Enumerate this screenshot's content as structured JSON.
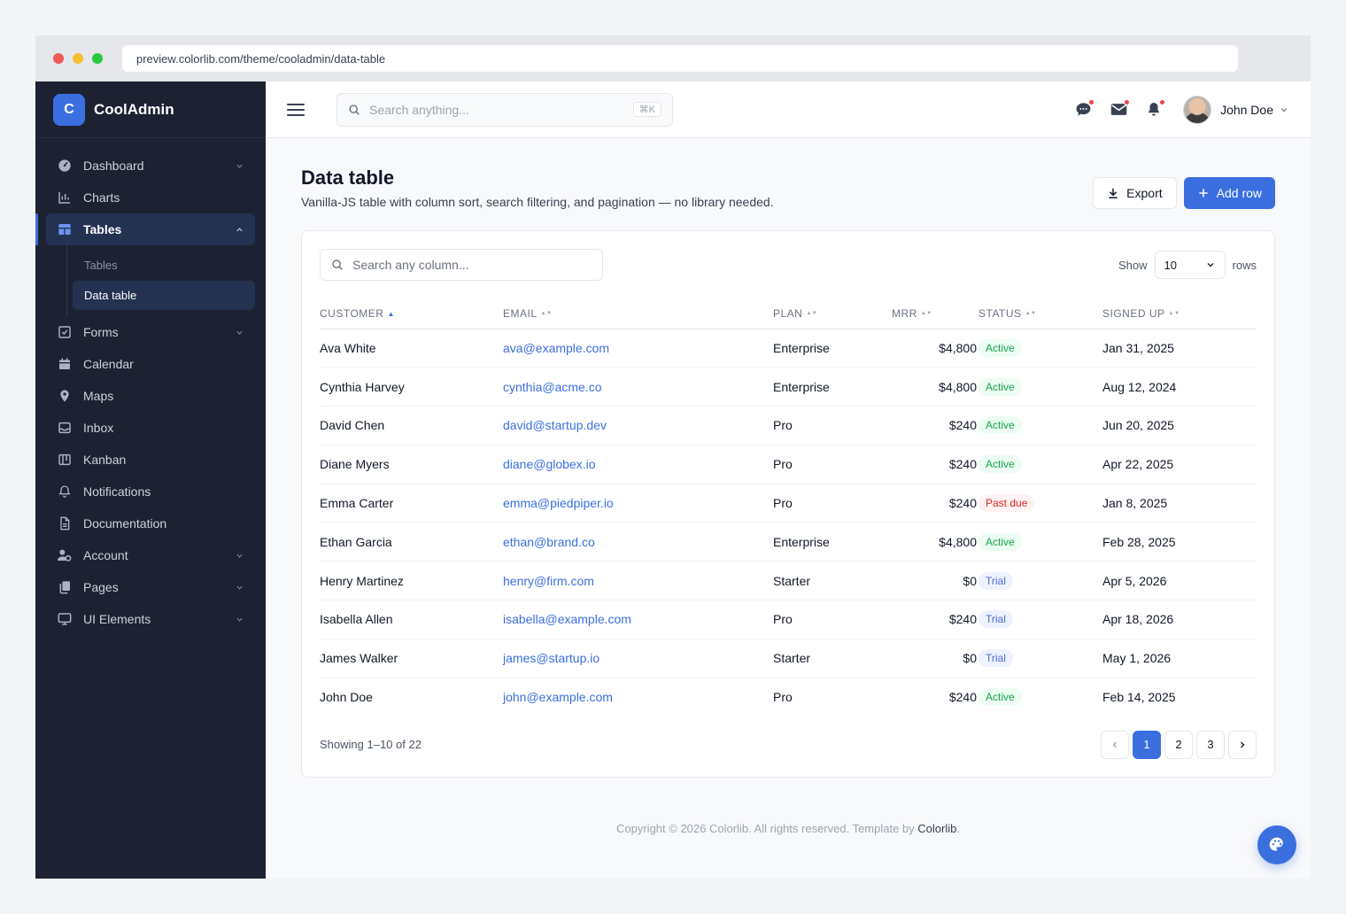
{
  "browser": {
    "url": "preview.colorlib.com/theme/cooladmin/data-table",
    "dots": [
      "#ef5a52",
      "#f5be2f",
      "#28c840"
    ]
  },
  "brand": {
    "logo_letter": "C",
    "name": "CoolAdmin"
  },
  "sidebar": {
    "items": [
      {
        "label": "Dashboard",
        "icon": "dashboard-icon",
        "chevron": "down"
      },
      {
        "label": "Charts",
        "icon": "chart-icon",
        "chevron": ""
      },
      {
        "label": "Tables",
        "icon": "table-icon",
        "chevron": "up",
        "active": true
      },
      {
        "label": "Forms",
        "icon": "checkbox-icon",
        "chevron": "down"
      },
      {
        "label": "Calendar",
        "icon": "calendar-icon",
        "chevron": ""
      },
      {
        "label": "Maps",
        "icon": "map-pin-icon",
        "chevron": ""
      },
      {
        "label": "Inbox",
        "icon": "inbox-icon",
        "chevron": ""
      },
      {
        "label": "Kanban",
        "icon": "kanban-icon",
        "chevron": ""
      },
      {
        "label": "Notifications",
        "icon": "bell-icon",
        "chevron": ""
      },
      {
        "label": "Documentation",
        "icon": "document-icon",
        "chevron": ""
      },
      {
        "label": "Account",
        "icon": "user-cog-icon",
        "chevron": "down"
      },
      {
        "label": "Pages",
        "icon": "pages-icon",
        "chevron": "down"
      },
      {
        "label": "UI Elements",
        "icon": "monitor-icon",
        "chevron": "down"
      }
    ],
    "sub_items": [
      {
        "label": "Tables",
        "current": false
      },
      {
        "label": "Data table",
        "current": true
      }
    ]
  },
  "topbar": {
    "search_placeholder": "Search anything...",
    "search_shortcut": "⌘K",
    "user_name": "John Doe"
  },
  "page": {
    "title": "Data table",
    "subtitle": "Vanilla-JS table with column sort, search filtering, and pagination — no library needed.",
    "export_label": "Export",
    "add_row_label": "Add row"
  },
  "table": {
    "search_placeholder": "Search any column...",
    "show_label": "Show",
    "rows_label": "rows",
    "page_size": "10",
    "columns": [
      {
        "label": "CUSTOMER",
        "sort": "asc"
      },
      {
        "label": "EMAIL",
        "sort": "none"
      },
      {
        "label": "PLAN",
        "sort": "none"
      },
      {
        "label": "MRR",
        "sort": "none"
      },
      {
        "label": "STATUS",
        "sort": "none"
      },
      {
        "label": "SIGNED UP",
        "sort": "none"
      }
    ],
    "rows": [
      {
        "customer": "Ava White",
        "email": "ava@example.com",
        "plan": "Enterprise",
        "mrr": "$4,800",
        "status": "Active",
        "signed_up": "Jan 31, 2025"
      },
      {
        "customer": "Cynthia Harvey",
        "email": "cynthia@acme.co",
        "plan": "Enterprise",
        "mrr": "$4,800",
        "status": "Active",
        "signed_up": "Aug 12, 2024"
      },
      {
        "customer": "David Chen",
        "email": "david@startup.dev",
        "plan": "Pro",
        "mrr": "$240",
        "status": "Active",
        "signed_up": "Jun 20, 2025"
      },
      {
        "customer": "Diane Myers",
        "email": "diane@globex.io",
        "plan": "Pro",
        "mrr": "$240",
        "status": "Active",
        "signed_up": "Apr 22, 2025"
      },
      {
        "customer": "Emma Carter",
        "email": "emma@piedpiper.io",
        "plan": "Pro",
        "mrr": "$240",
        "status": "Past due",
        "signed_up": "Jan 8, 2025"
      },
      {
        "customer": "Ethan Garcia",
        "email": "ethan@brand.co",
        "plan": "Enterprise",
        "mrr": "$4,800",
        "status": "Active",
        "signed_up": "Feb 28, 2025"
      },
      {
        "customer": "Henry Martinez",
        "email": "henry@firm.com",
        "plan": "Starter",
        "mrr": "$0",
        "status": "Trial",
        "signed_up": "Apr 5, 2026"
      },
      {
        "customer": "Isabella Allen",
        "email": "isabella@example.com",
        "plan": "Pro",
        "mrr": "$240",
        "status": "Trial",
        "signed_up": "Apr 18, 2026"
      },
      {
        "customer": "James Walker",
        "email": "james@startup.io",
        "plan": "Starter",
        "mrr": "$0",
        "status": "Trial",
        "signed_up": "May 1, 2026"
      },
      {
        "customer": "John Doe",
        "email": "john@example.com",
        "plan": "Pro",
        "mrr": "$240",
        "status": "Active",
        "signed_up": "Feb 14, 2025"
      }
    ],
    "showing_text": "Showing 1–10 of 22",
    "pages": [
      "1",
      "2",
      "3"
    ],
    "current_page": "1"
  },
  "footer": {
    "text": "Copyright © 2026 Colorlib. All rights reserved. Template by ",
    "link": "Colorlib",
    "end": "."
  },
  "colors": {
    "accent": "#3b6fe0",
    "sidebar_bg": "#1c2232",
    "active_green": "#16a34a",
    "past_due_red": "#dc2626"
  }
}
